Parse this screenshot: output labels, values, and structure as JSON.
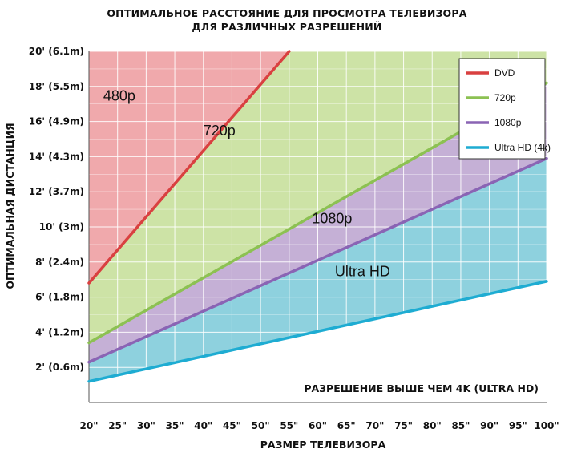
{
  "chart_data": {
    "type": "area",
    "title": [
      "ОПТИМАЛЬНОЕ РАССТОЯНИЕ ДЛЯ ПРОСМОТРА ТЕЛЕВИЗОРА",
      "ДЛЯ РАЗЛИЧНЫХ РАЗРЕШЕНИЙ"
    ],
    "xlabel": "РАЗМЕР ТЕЛЕВИЗОРА",
    "ylabel": "ОПТИМАЛЬНАЯ ДИСТАНЦИЯ",
    "xlim": [
      20,
      100
    ],
    "ylim": [
      0,
      20
    ],
    "x_ticks": [
      20,
      25,
      30,
      35,
      40,
      45,
      50,
      55,
      60,
      65,
      70,
      75,
      80,
      85,
      90,
      95,
      100
    ],
    "x_tick_labels": [
      "20\"",
      "25\"",
      "30\"",
      "35\"",
      "40\"",
      "45\"",
      "50\"",
      "55\"",
      "60\"",
      "65\"",
      "70\"",
      "75\"",
      "80\"",
      "85\"",
      "90\"",
      "95\"",
      "100\""
    ],
    "y_ticks": [
      2,
      4,
      6,
      8,
      10,
      12,
      14,
      16,
      18,
      20
    ],
    "y_tick_labels": [
      "2' (0.6m)",
      "4' (1.2m)",
      "6' (1.8m)",
      "8' (2.4m)",
      "10' (3m)",
      "12' (3.7m)",
      "14' (4.3m)",
      "16' (4.9m)",
      "18' (5.5m)",
      "20' (6.1m)"
    ],
    "grid": true,
    "legend_position": "top-right",
    "series": [
      {
        "name": "DVD",
        "color": "#d94040",
        "x": [
          20,
          55
        ],
        "y": [
          6.8,
          20
        ]
      },
      {
        "name": "720p",
        "color": "#8cc152",
        "x": [
          20,
          100
        ],
        "y": [
          3.4,
          18.2
        ]
      },
      {
        "name": "1080p",
        "color": "#8a64b4",
        "x": [
          20,
          100
        ],
        "y": [
          2.3,
          13.9
        ]
      },
      {
        "name": "Ultra HD (4k)",
        "color": "#1eacd2",
        "x": [
          20,
          100
        ],
        "y": [
          1.2,
          6.9
        ]
      }
    ],
    "regions": [
      {
        "label": "480p",
        "fill": "#f0a9ac",
        "x": 22.5,
        "y": 17.2
      },
      {
        "label": "720p",
        "fill": "#cde3a6",
        "x": 40,
        "y": 15.2
      },
      {
        "label": "1080p",
        "fill": "#c5b0d6",
        "x": 59,
        "y": 10.2
      },
      {
        "label": "Ultra HD",
        "fill": "#8ed1de",
        "x": 63,
        "y": 7.2
      }
    ],
    "annotations": [
      {
        "text": "РАЗРЕШЕНИЕ ВЫШЕ ЧЕМ 4K (ULTRA HD)"
      }
    ]
  }
}
